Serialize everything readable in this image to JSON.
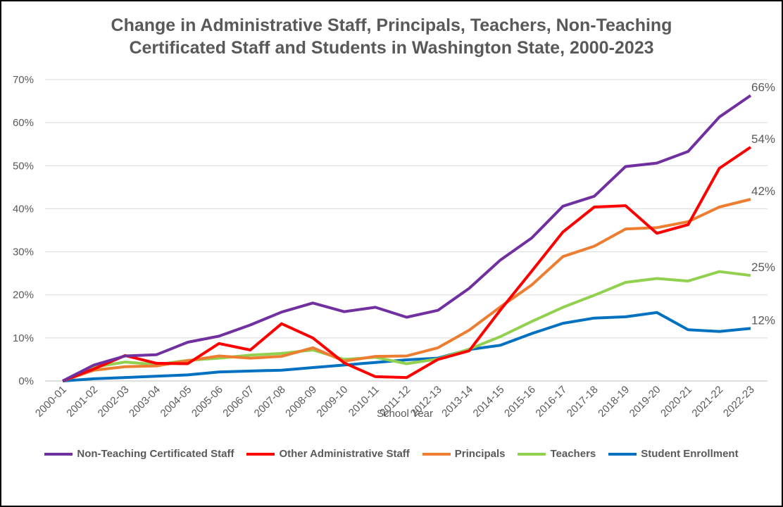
{
  "chart_data": {
    "type": "line",
    "title_line1": "Change in Administrative Staff, Principals, Teachers, Non-Teaching",
    "title_line2": "Certificated Staff and Students in Washington State, 2000-2023",
    "xlabel": "School Year",
    "ylabel": "",
    "ylim": [
      0,
      70
    ],
    "yticks": [
      "0%",
      "10%",
      "20%",
      "30%",
      "40%",
      "50%",
      "60%",
      "70%"
    ],
    "grid": "horizontal",
    "legend_position": "bottom",
    "categories": [
      "2000-01",
      "2001-02",
      "2002-03",
      "2003-04",
      "2004-05",
      "2005-06",
      "2006-07",
      "2007-08",
      "2008-09",
      "2009-10",
      "2010-11",
      "2011-12",
      "2012-13",
      "2013-14",
      "2014-15",
      "2015-16",
      "2016-17",
      "2017-18",
      "2018-19",
      "2019-20",
      "2020-21",
      "2021-22",
      "2022-23"
    ],
    "series": [
      {
        "name": "Non-Teaching Certificated Staff",
        "color": "#7030A0",
        "end_label": "66%",
        "values": [
          0,
          3.7,
          5.8,
          6.1,
          9.0,
          10.4,
          13.0,
          16.0,
          18.1,
          16.1,
          17.1,
          14.8,
          16.4,
          21.5,
          28.1,
          33.2,
          40.6,
          42.9,
          49.8,
          50.6,
          53.3,
          61.3,
          66.3
        ]
      },
      {
        "name": "Other Administrative Staff",
        "color": "#FF0000",
        "end_label": "54%",
        "values": [
          0,
          2.8,
          5.9,
          4.1,
          4.0,
          8.7,
          7.2,
          13.3,
          10.0,
          4.2,
          1.0,
          0.8,
          5.0,
          7.0,
          16.5,
          25.5,
          34.6,
          40.4,
          40.7,
          34.3,
          36.3,
          49.4,
          54.3
        ]
      },
      {
        "name": "Principals",
        "color": "#ED7D31",
        "end_label": "42%",
        "values": [
          0,
          2.5,
          3.3,
          3.5,
          4.7,
          5.8,
          5.3,
          5.7,
          7.7,
          4.6,
          5.7,
          5.8,
          7.7,
          11.8,
          17.2,
          22.3,
          28.9,
          31.3,
          35.3,
          35.6,
          37.0,
          40.4,
          42.2
        ]
      },
      {
        "name": "Teachers",
        "color": "#92D050",
        "end_label": "25%",
        "values": [
          0,
          3.2,
          4.4,
          3.8,
          4.8,
          5.3,
          6.0,
          6.4,
          7.2,
          5.0,
          5.5,
          4.0,
          5.1,
          7.4,
          10.3,
          13.8,
          17.1,
          19.9,
          22.9,
          23.8,
          23.2,
          25.4,
          24.5
        ]
      },
      {
        "name": "Student Enrollment",
        "color": "#0070C0",
        "end_label": "12%",
        "values": [
          0,
          0.5,
          0.8,
          1.1,
          1.4,
          2.1,
          2.3,
          2.5,
          3.1,
          3.7,
          4.3,
          4.9,
          5.3,
          7.3,
          8.3,
          11.0,
          13.4,
          14.6,
          14.9,
          15.9,
          11.9,
          11.5,
          12.2
        ]
      }
    ]
  }
}
